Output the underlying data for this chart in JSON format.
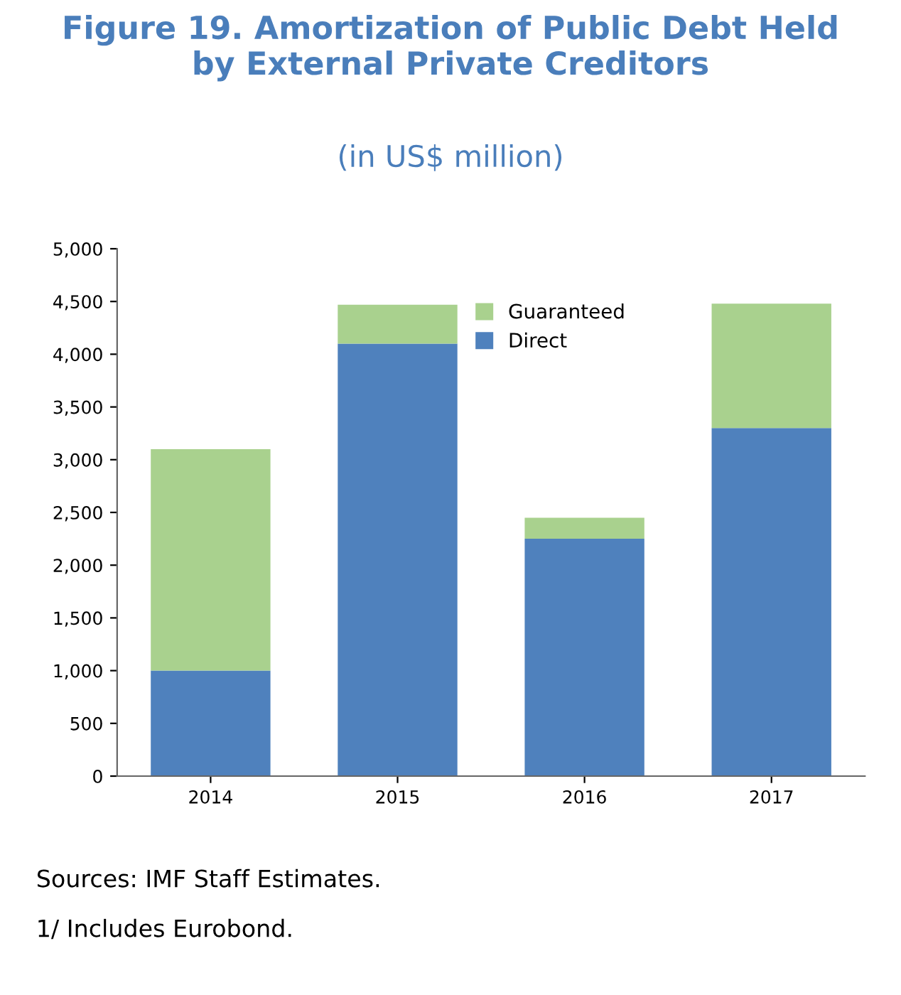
{
  "chart_data": {
    "type": "bar",
    "title": "Figure 19. Amortization of Public Debt Held\nby External Private Creditors",
    "subtitle": "(in US$ million)",
    "categories": [
      "2014",
      "2015",
      "2016",
      "2017"
    ],
    "stacked": true,
    "series": [
      {
        "name": "Direct",
        "color": "#4f81bd",
        "values": [
          1000,
          4100,
          2250,
          3300
        ]
      },
      {
        "name": "Guaranteed",
        "color": "#a9d18e",
        "values": [
          2100,
          370,
          200,
          1180
        ]
      }
    ],
    "ylim": [
      0,
      5000
    ],
    "yticks": [
      {
        "value": 0,
        "label": "0"
      },
      {
        "value": 500,
        "label": "500"
      },
      {
        "value": 1000,
        "label": "1,000"
      },
      {
        "value": 1500,
        "label": "1,500"
      },
      {
        "value": 2000,
        "label": "2,000"
      },
      {
        "value": 2500,
        "label": "2,500"
      },
      {
        "value": 3000,
        "label": "3,000"
      },
      {
        "value": 3500,
        "label": "3,500"
      },
      {
        "value": 4000,
        "label": "4,000"
      },
      {
        "value": 4500,
        "label": "4,500"
      },
      {
        "value": 5000,
        "label": "5,000"
      }
    ],
    "grid": false,
    "legend": "top",
    "annotations": [
      "Sources: IMF Staff Estimates.",
      "1/ Includes Eurobond."
    ]
  }
}
